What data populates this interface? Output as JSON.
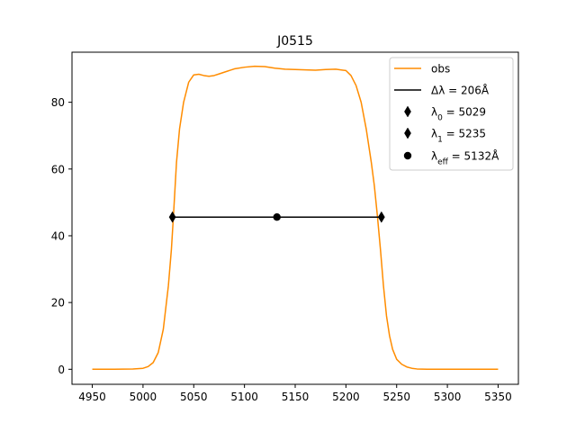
{
  "chart_data": {
    "type": "line",
    "title": "J0515",
    "xlabel": "",
    "ylabel": "",
    "xlim": [
      4930,
      5370
    ],
    "ylim": [
      -4.5,
      95
    ],
    "x_ticks": [
      4950,
      5000,
      5050,
      5100,
      5150,
      5200,
      5250,
      5300,
      5350
    ],
    "y_ticks": [
      0,
      20,
      40,
      60,
      80
    ],
    "grid": false,
    "legend_position": "top-right",
    "colors": {
      "obs": "#ff8c00",
      "markers": "#000000"
    },
    "series": [
      {
        "name": "obs",
        "x": [
          4950,
          4970,
          4990,
          5000,
          5005,
          5010,
          5015,
          5020,
          5025,
          5028,
          5030,
          5033,
          5036,
          5040,
          5045,
          5050,
          5055,
          5060,
          5065,
          5070,
          5075,
          5080,
          5090,
          5100,
          5110,
          5120,
          5130,
          5140,
          5150,
          5160,
          5170,
          5180,
          5190,
          5200,
          5205,
          5210,
          5215,
          5220,
          5225,
          5228,
          5231,
          5234,
          5237,
          5240,
          5243,
          5246,
          5250,
          5255,
          5260,
          5265,
          5270,
          5280,
          5300,
          5320,
          5350
        ],
        "y": [
          0.0,
          0.0,
          0.1,
          0.3,
          0.8,
          2.0,
          5.0,
          12.0,
          25.0,
          36.0,
          46.0,
          62.0,
          72.0,
          80.0,
          86.0,
          88.2,
          88.4,
          88.0,
          87.8,
          88.0,
          88.5,
          89.0,
          90.0,
          90.5,
          90.8,
          90.7,
          90.2,
          89.9,
          89.8,
          89.7,
          89.6,
          89.8,
          89.9,
          89.5,
          88.0,
          85.0,
          80.0,
          72.0,
          62.0,
          55.0,
          46.0,
          36.0,
          25.0,
          16.0,
          10.0,
          6.0,
          3.0,
          1.5,
          0.7,
          0.3,
          0.1,
          0.0,
          0.0,
          0.0,
          0.0
        ]
      },
      {
        "name": "Δλ = 206Å",
        "x": [
          5029,
          5235
        ],
        "y": [
          45.6,
          45.6
        ]
      }
    ],
    "markers": [
      {
        "name": "λ0 = 5029",
        "x": 5029,
        "y": 45.6,
        "shape": "thin_diamond"
      },
      {
        "name": "λ1 = 5235",
        "x": 5235,
        "y": 45.6,
        "shape": "thin_diamond"
      },
      {
        "name": "λeff = 5132Å",
        "x": 5132,
        "y": 45.6,
        "shape": "circle"
      }
    ],
    "legend": [
      {
        "label": "obs",
        "kind": "line",
        "color": "#ff8c00"
      },
      {
        "label": "Δλ = 206Å",
        "kind": "line",
        "color": "#000000"
      },
      {
        "label": "λ0 = 5029",
        "kind": "diamond",
        "color": "#000000"
      },
      {
        "label": "λ1 = 5235",
        "kind": "diamond",
        "color": "#000000"
      },
      {
        "label": "λeff = 5132Å",
        "kind": "circle",
        "color": "#000000"
      }
    ]
  }
}
